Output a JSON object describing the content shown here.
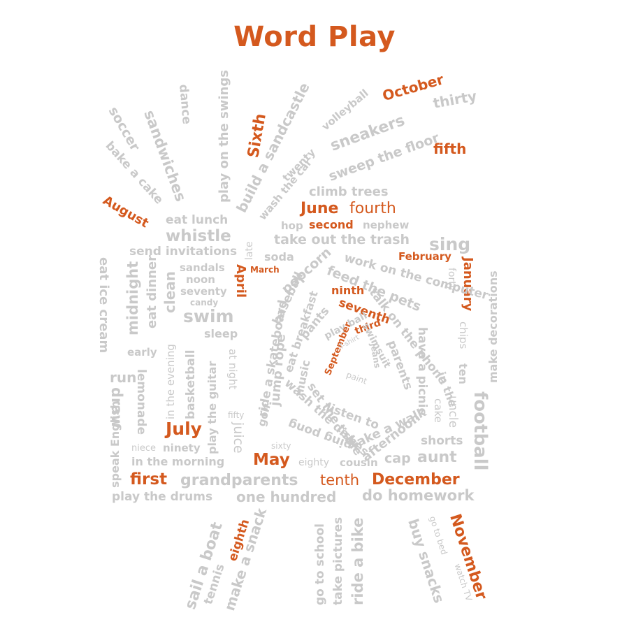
{
  "title": "Word Play",
  "colors": {
    "accent": "#d4591e",
    "word": "#c9c9c9",
    "background": "#ffffff"
  },
  "highlighted_words": [
    "October",
    "Sixth",
    "fifth",
    "August",
    "June",
    "fourth",
    "second",
    "February",
    "January",
    "April",
    "March",
    "ninth",
    "seventh",
    "September",
    "third",
    "July",
    "May",
    "first",
    "tenth",
    "December",
    "eighth",
    "November"
  ],
  "words": {
    "soccer": "soccer",
    "sandwiches": "sandwiches",
    "dance": "dance",
    "play_on_the_swings": "play on the swings",
    "sixth": "Sixth",
    "build_a_sandcastle": "build a sandcastle",
    "volleyball": "volleyball",
    "october": "October",
    "thirty": "thirty",
    "sneakers": "sneakers",
    "sweep_the_floor": "sweep the floor",
    "fifth": "fifth",
    "twenty": "twenty",
    "wash_the_car": "wash the car",
    "bake_a_cake": "bake a cake",
    "august": "August",
    "climb_trees": "climb trees",
    "june": "June",
    "fourth": "fourth",
    "eat_lunch": "eat lunch",
    "hop": "hop",
    "second": "second",
    "nephew": "nephew",
    "whistle": "whistle",
    "late": "late",
    "take_out_the_trash": "take out the trash",
    "sing": "sing",
    "send_invitations": "send invitations",
    "soda": "soda",
    "february": "February",
    "january": "January",
    "sandals": "sandals",
    "march": "March",
    "popcorn": "popcorn",
    "work_on_the_computer": "work on the computer",
    "noon": "noon",
    "april": "April",
    "feed_the_pets": "feed the pets",
    "forty": "forty",
    "seventy": "seventy",
    "eat_ice_cream": "eat ice cream",
    "midnight": "midnight",
    "eat_dinner": "eat dinner",
    "clean": "clean",
    "candy": "candy",
    "baseball": "baseball",
    "ninth": "ninth",
    "talk_on_the_phone": "talk on the phone",
    "make_decorations": "make decorations",
    "swim": "swim",
    "skateboard": "ride a skateboard",
    "pants": "pants",
    "seventh": "seventh",
    "eat_breakfast": "eat breakfast",
    "play_ball": "play ball",
    "sleep": "sleep",
    "september": "September",
    "third": "third",
    "tshirt": "T-shirt",
    "swimsuit": "swimsuit",
    "parents": "parents",
    "have_a_picnic": "have a picnic",
    "chips": "chips",
    "early": "early",
    "in_the_evening": "in the evening",
    "basketball": "basketball",
    "at_night": "at night",
    "jump_rope": "jump rope",
    "music": "music",
    "jeans": "jeans",
    "paint": "paint",
    "set_the_table": "set the table",
    "in_the": "in the",
    "ten": "ten",
    "run": "run",
    "lemonade": "lemonade",
    "play_the_guitar": "play the guitar",
    "wash_the_dishes": "wash the dishes",
    "listen_to": "listen to",
    "take_a_walk": "take a walk",
    "afternoon": "afternoon",
    "draw": "draw",
    "cake": "cake",
    "uncle": "uncle",
    "football": "football",
    "speak_english": "speak English",
    "fifty": "fifty",
    "golf": "golf",
    "juice": "juice",
    "ping_pong": "ping pong",
    "sixty": "sixty",
    "july": "July",
    "shorts": "shorts",
    "niece": "niece",
    "ninety": "ninety",
    "in_the_morning": "in the morning",
    "may": "May",
    "eighty": "eighty",
    "cousin": "cousin",
    "cap": "cap",
    "aunt": "aunt",
    "first": "first",
    "grandparents": "grandparents",
    "tenth": "tenth",
    "december": "December",
    "play_the_drums": "play the drums",
    "one_hundred": "one hundred",
    "do_homework": "do homework",
    "sail_a_boat": "sail a boat",
    "eighth": "eighth",
    "tennis": "tennis",
    "make_a_snack": "make a snack",
    "go_to_school": "go to school",
    "take_pictures": "take pictures",
    "ride_a_bike": "ride a bike",
    "buy_snacks": "buy snacks",
    "go_to_bed": "go to bed",
    "watch_tv": "watch TV",
    "november": "November"
  }
}
